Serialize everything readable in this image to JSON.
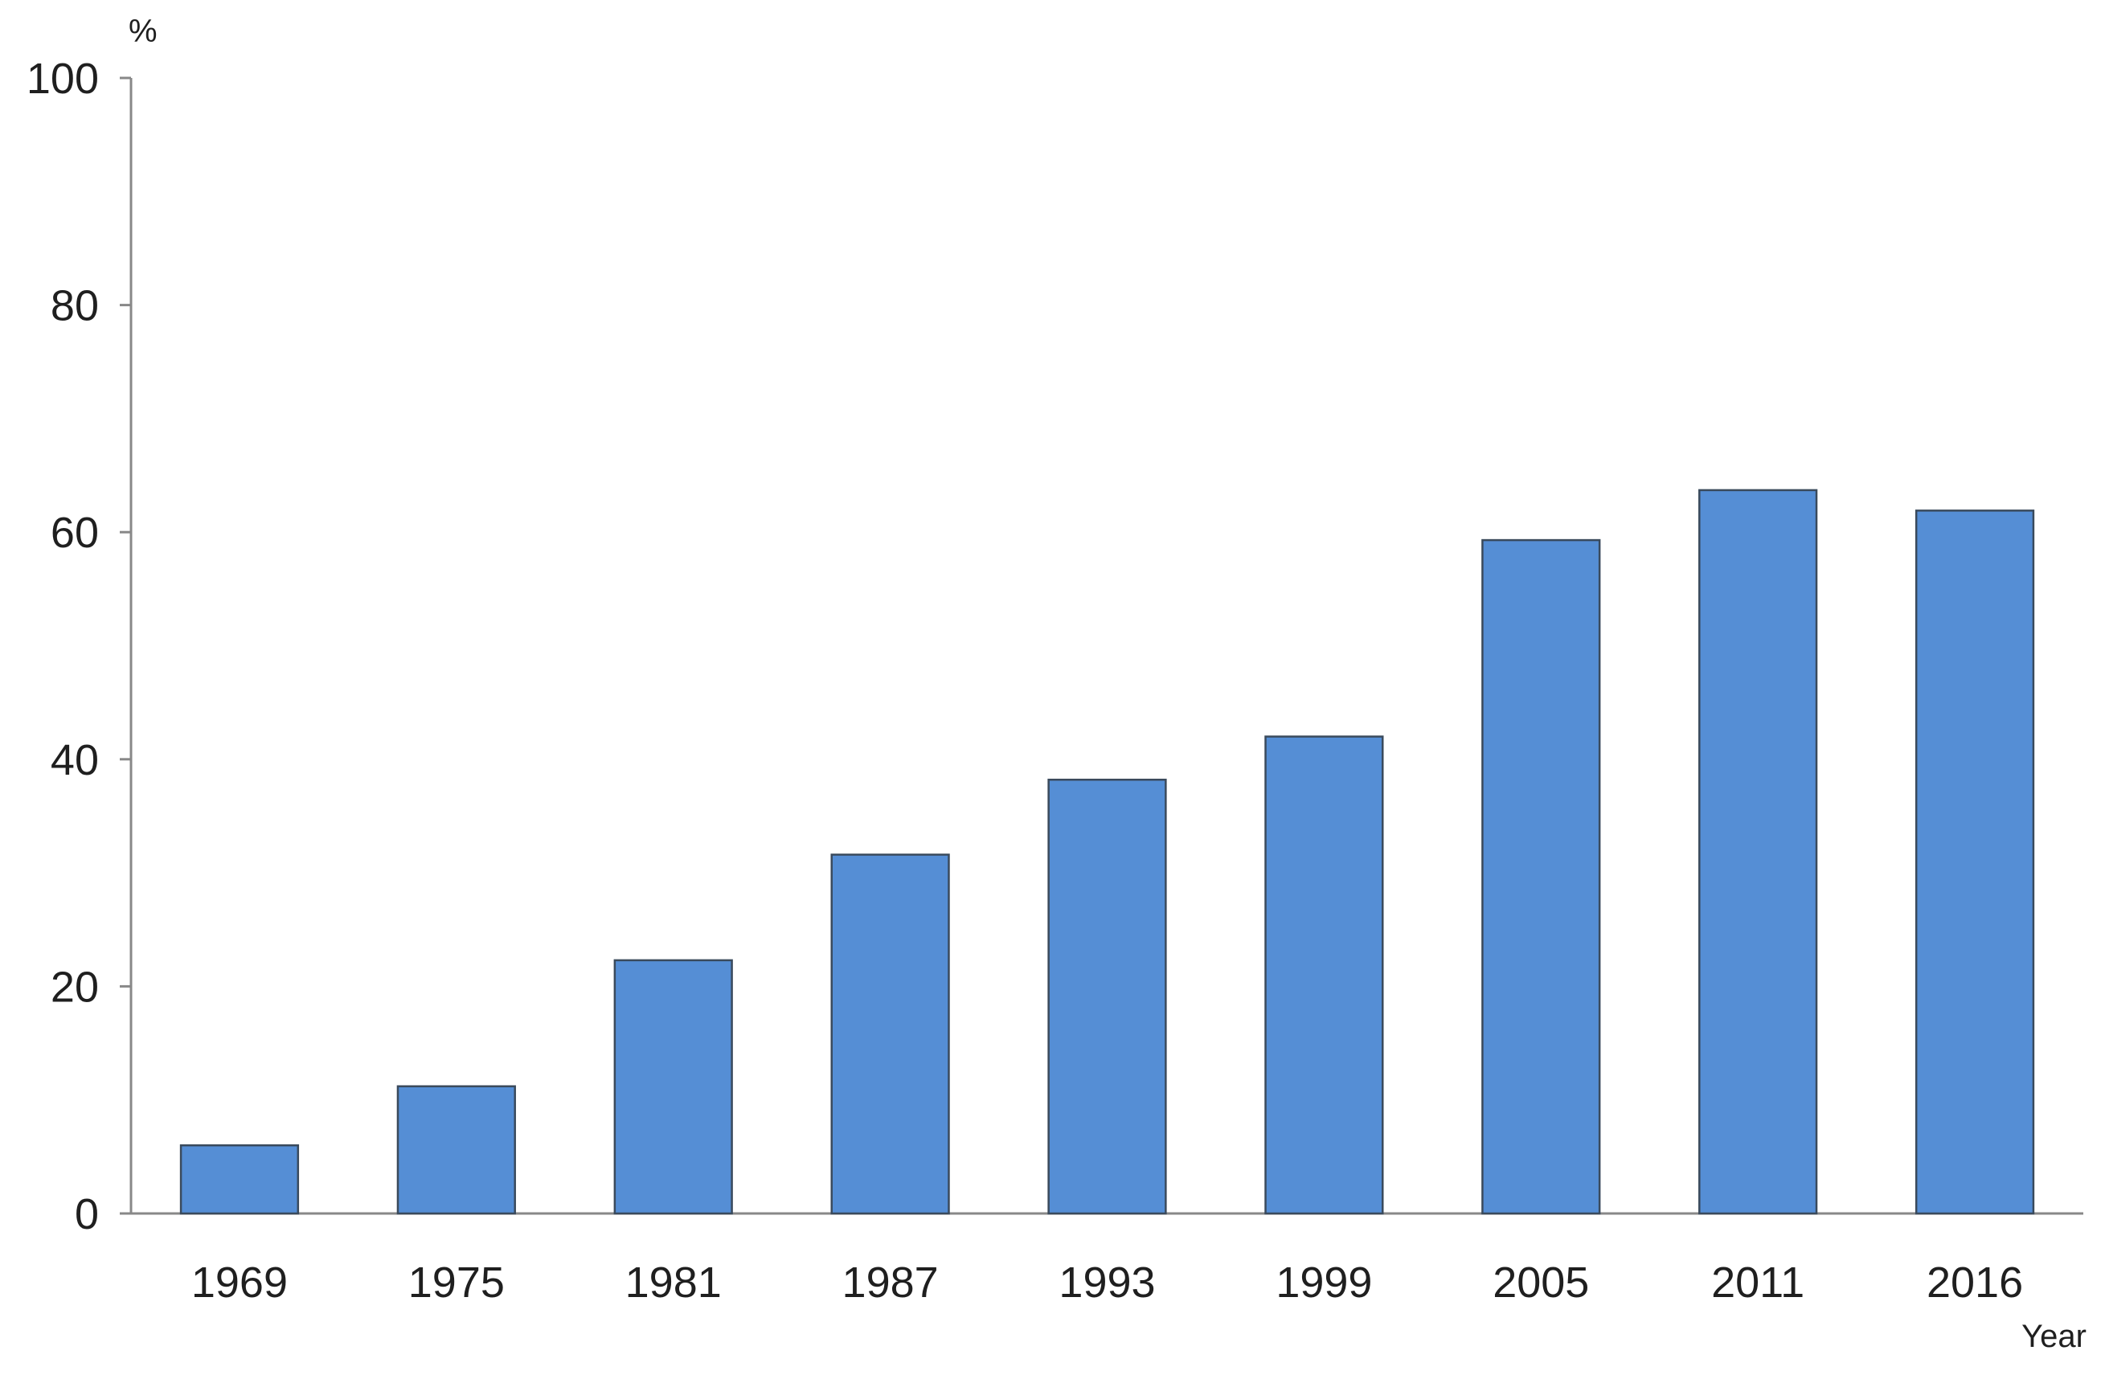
{
  "chart_data": {
    "type": "bar",
    "categories": [
      "1969",
      "1975",
      "1981",
      "1987",
      "1993",
      "1999",
      "2005",
      "2011",
      "2016"
    ],
    "values": [
      6.0,
      11.2,
      22.3,
      31.6,
      38.2,
      42.0,
      59.3,
      63.7,
      61.9
    ],
    "title": "",
    "xlabel": "Year",
    "ylabel": "%",
    "ylim": [
      0,
      100
    ],
    "yticks": [
      0,
      20,
      40,
      60,
      80,
      100
    ],
    "grid": false,
    "legend": "none",
    "bar_color": "#558ed5",
    "bar_edge_color": "#3a4a5c",
    "axis_color": "#888888"
  }
}
